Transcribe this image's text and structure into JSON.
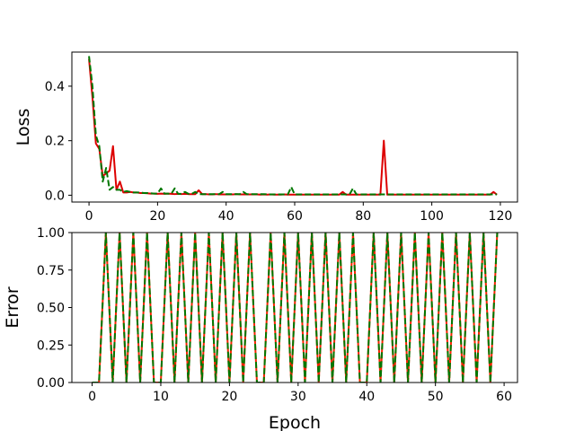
{
  "chart_data": [
    {
      "type": "line",
      "title": "",
      "xlabel": "",
      "ylabel": "Loss",
      "xlim": [
        -5,
        125
      ],
      "ylim": [
        -0.025,
        0.525
      ],
      "xticks": [
        0,
        20,
        40,
        60,
        80,
        100,
        120
      ],
      "xtick_labels": [
        "0",
        "20",
        "40",
        "60",
        "80",
        "100",
        "120"
      ],
      "yticks": [
        0.0,
        0.2,
        0.4
      ],
      "ytick_labels": [
        "0.0",
        "0.2",
        "0.4"
      ],
      "grid": false,
      "series": [
        {
          "color": "#dd0000",
          "style": "solid",
          "values": [
            0.5,
            0.36,
            0.19,
            0.17,
            0.07,
            0.08,
            0.09,
            0.18,
            0.02,
            0.05,
            0.01,
            0.01,
            0.012,
            0.01,
            0.01,
            0.008,
            0.008,
            0.007,
            0.006,
            0.006,
            0.005,
            0.006,
            0.005,
            0.006,
            0.005,
            0.004,
            0.005,
            0.004,
            0.005,
            0.004,
            0.004,
            0.004,
            0.018,
            0.004,
            0.004,
            0.003,
            0.003,
            0.004,
            0.003,
            0.003,
            0.003,
            0.003,
            0.003,
            0.004,
            0.003,
            0.003,
            0.003,
            0.003,
            0.003,
            0.003,
            0.002,
            0.003,
            0.002,
            0.003,
            0.002,
            0.002,
            0.002,
            0.003,
            0.002,
            0.002,
            0.002,
            0.002,
            0.002,
            0.002,
            0.002,
            0.002,
            0.002,
            0.002,
            0.002,
            0.002,
            0.002,
            0.002,
            0.002,
            0.002,
            0.012,
            0.002,
            0.002,
            0.002,
            0.002,
            0.002,
            0.002,
            0.002,
            0.002,
            0.002,
            0.002,
            0.002,
            0.2,
            0.002,
            0.002,
            0.002,
            0.002,
            0.002,
            0.002,
            0.002,
            0.002,
            0.002,
            0.002,
            0.002,
            0.002,
            0.002,
            0.002,
            0.002,
            0.002,
            0.002,
            0.002,
            0.002,
            0.002,
            0.002,
            0.002,
            0.002,
            0.002,
            0.002,
            0.002,
            0.002,
            0.002,
            0.002,
            0.002,
            0.002,
            0.012,
            0.002
          ]
        },
        {
          "color": "#007700",
          "style": "dashed",
          "values": [
            0.51,
            0.4,
            0.22,
            0.18,
            0.05,
            0.1,
            0.02,
            0.03,
            0.02,
            0.02,
            0.012,
            0.015,
            0.012,
            0.01,
            0.01,
            0.01,
            0.008,
            0.008,
            0.007,
            0.006,
            0.006,
            0.025,
            0.006,
            0.006,
            0.005,
            0.025,
            0.005,
            0.005,
            0.012,
            0.005,
            0.005,
            0.012,
            0.004,
            0.004,
            0.004,
            0.004,
            0.004,
            0.004,
            0.004,
            0.012,
            0.004,
            0.004,
            0.004,
            0.004,
            0.004,
            0.012,
            0.004,
            0.004,
            0.004,
            0.004,
            0.004,
            0.004,
            0.003,
            0.003,
            0.003,
            0.003,
            0.003,
            0.003,
            0.003,
            0.03,
            0.003,
            0.003,
            0.003,
            0.003,
            0.003,
            0.003,
            0.003,
            0.003,
            0.003,
            0.003,
            0.003,
            0.003,
            0.003,
            0.003,
            0.003,
            0.003,
            0.003,
            0.025,
            0.003,
            0.003,
            0.003,
            0.003,
            0.003,
            0.003,
            0.003,
            0.003,
            0.003,
            0.003,
            0.003,
            0.003,
            0.003,
            0.003,
            0.003,
            0.003,
            0.003,
            0.003,
            0.003,
            0.003,
            0.003,
            0.003,
            0.003,
            0.003,
            0.003,
            0.003,
            0.003,
            0.003,
            0.003,
            0.003,
            0.003,
            0.003,
            0.003,
            0.003,
            0.003,
            0.003,
            0.003,
            0.003,
            0.003,
            0.003,
            0.003,
            0.003
          ]
        }
      ]
    },
    {
      "type": "line",
      "title": "",
      "xlabel": "Epoch",
      "ylabel": "Error",
      "xlim": [
        -2.95,
        61.95
      ],
      "ylim": [
        0.0,
        1.0
      ],
      "xticks": [
        0,
        10,
        20,
        30,
        40,
        50,
        60
      ],
      "xtick_labels": [
        "0",
        "10",
        "20",
        "30",
        "40",
        "50",
        "60"
      ],
      "yticks": [
        0.0,
        0.25,
        0.5,
        0.75,
        1.0
      ],
      "ytick_labels": [
        "0.00",
        "0.25",
        "0.50",
        "0.75",
        "1.00"
      ],
      "grid": false,
      "series": [
        {
          "color": "#ff2200",
          "style": "solid",
          "values": [
            0,
            0,
            1,
            0,
            1,
            0,
            1,
            0,
            1,
            0,
            0,
            1,
            0,
            1,
            0,
            1,
            0,
            1,
            0,
            1,
            0,
            1,
            0,
            1,
            0,
            0,
            1,
            0,
            1,
            0,
            1,
            0,
            1,
            0,
            1,
            0,
            1,
            0,
            1,
            0,
            0,
            1,
            0,
            1,
            0,
            1,
            0,
            1,
            0,
            1,
            0,
            1,
            0,
            1,
            0,
            1,
            0,
            1,
            0,
            1
          ]
        },
        {
          "color": "#007700",
          "style": "dashed",
          "values": [
            0,
            0,
            1,
            0,
            1,
            0,
            1,
            0,
            1,
            0,
            0,
            1,
            0,
            1,
            0,
            1,
            0,
            1,
            0,
            1,
            0,
            1,
            0,
            1,
            0,
            0,
            1,
            0,
            1,
            0,
            1,
            0,
            1,
            0,
            1,
            0,
            1,
            0,
            1,
            0,
            0,
            1,
            0,
            1,
            0,
            1,
            0,
            1,
            0,
            1,
            0,
            1,
            0,
            1,
            0,
            1,
            0,
            1,
            0,
            1
          ]
        }
      ]
    }
  ]
}
